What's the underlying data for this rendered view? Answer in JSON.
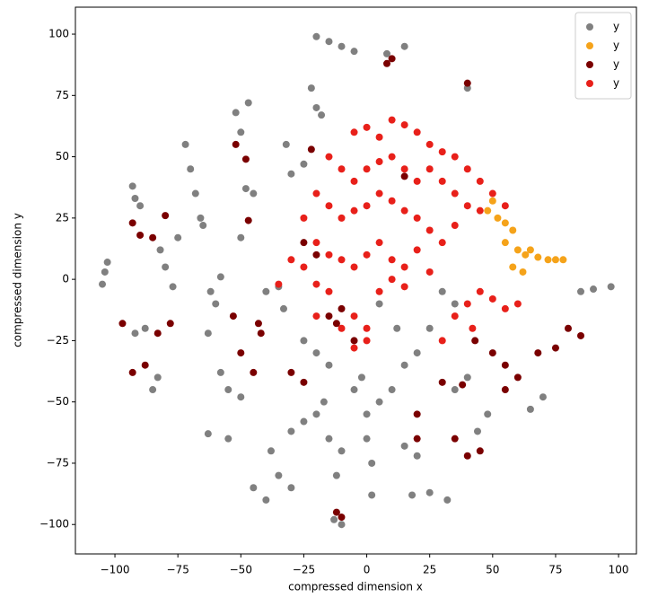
{
  "chart_data": {
    "type": "scatter",
    "xlabel": "compressed dimension x",
    "ylabel": "compressed dimension y",
    "xlim": [
      -115.7,
      107.1
    ],
    "ylim": [
      -112,
      111
    ],
    "xticks": [
      {
        "value": -100,
        "label": "−100"
      },
      {
        "value": -75,
        "label": "−75"
      },
      {
        "value": -50,
        "label": "−50"
      },
      {
        "value": -25,
        "label": "−25"
      },
      0,
      25,
      50,
      75,
      100
    ],
    "yticks": [
      {
        "value": -100,
        "label": "−100"
      },
      {
        "value": -75,
        "label": "−75"
      },
      {
        "value": -50,
        "label": "−50"
      },
      {
        "value": -25,
        "label": "−25"
      },
      0,
      25,
      50,
      75,
      100
    ],
    "grid": false,
    "legend": "upper right",
    "series": [
      {
        "name": "y",
        "color": "#808080",
        "x": [
          -105,
          -104,
          -103,
          -93,
          -92,
          -90,
          -85,
          -83,
          -88,
          -92,
          -80,
          -77,
          -82,
          -75,
          -72,
          -70,
          -68,
          -66,
          -65,
          -63,
          -60,
          -62,
          -58,
          -63,
          -55,
          -55,
          -50,
          -58,
          -52,
          -47,
          -50,
          -48,
          -50,
          -45,
          -40,
          -35,
          -33,
          -30,
          -25,
          -20,
          -17,
          -35,
          -30,
          -38,
          -45,
          -40,
          -30,
          -25,
          -32,
          -22,
          -20,
          -18,
          -20,
          -15,
          -10,
          -5,
          -10,
          -13,
          -10,
          -15,
          -12,
          -5,
          -2,
          0,
          5,
          10,
          15,
          20,
          25,
          12,
          5,
          0,
          2,
          2,
          8,
          15,
          15,
          20,
          18,
          25,
          32,
          35,
          40,
          44,
          48,
          40,
          65,
          70,
          85,
          90,
          97,
          -25,
          -20,
          -15,
          30,
          35
        ],
        "y": [
          -2,
          3,
          7,
          38,
          33,
          30,
          -45,
          -40,
          -20,
          -22,
          5,
          -3,
          12,
          17,
          55,
          45,
          35,
          25,
          22,
          -22,
          -10,
          -5,
          1,
          -63,
          -65,
          -45,
          -48,
          -38,
          68,
          72,
          60,
          37,
          17,
          35,
          -5,
          -3,
          -12,
          -62,
          -58,
          -55,
          -50,
          -80,
          -85,
          -70,
          -85,
          -90,
          43,
          47,
          55,
          78,
          70,
          67,
          99,
          97,
          95,
          93,
          -100,
          -98,
          -70,
          -65,
          -80,
          -45,
          -40,
          -55,
          -50,
          -45,
          -35,
          -30,
          -20,
          -20,
          -10,
          -65,
          -75,
          -88,
          92,
          95,
          -68,
          -72,
          -88,
          -87,
          -90,
          -45,
          -40,
          -62,
          -55,
          78,
          -53,
          -48,
          -5,
          -4,
          -3,
          -25,
          -30,
          -35,
          -5,
          -10
        ]
      },
      {
        "name": "y",
        "color": "#f5a31a",
        "x": [
          48,
          52,
          55,
          58,
          55,
          60,
          58,
          63,
          65,
          68,
          72,
          75,
          78,
          62,
          50
        ],
        "y": [
          28,
          25,
          23,
          20,
          15,
          12,
          5,
          10,
          12,
          9,
          8,
          8,
          8,
          3,
          32
        ]
      },
      {
        "name": "y",
        "color": "#7a0000",
        "x": [
          -97,
          -93,
          -90,
          -85,
          -80,
          -83,
          -78,
          -93,
          -88,
          -50,
          -53,
          -52,
          -48,
          -47,
          -45,
          -43,
          -42,
          -30,
          -25,
          -22,
          -25,
          -20,
          -15,
          -12,
          -10,
          -12,
          -10,
          8,
          10,
          20,
          20,
          15,
          30,
          35,
          40,
          45,
          38,
          50,
          55,
          60,
          68,
          75,
          80,
          85,
          55,
          43,
          40,
          -5
        ],
        "y": [
          -18,
          23,
          18,
          17,
          26,
          -22,
          -18,
          -38,
          -35,
          -30,
          -15,
          55,
          49,
          24,
          -38,
          -18,
          -22,
          -38,
          -42,
          53,
          15,
          10,
          -15,
          -18,
          -12,
          -95,
          -97,
          88,
          90,
          -55,
          -65,
          42,
          -42,
          -65,
          -72,
          -70,
          -43,
          -30,
          -35,
          -40,
          -30,
          -28,
          -20,
          -23,
          -45,
          -25,
          80,
          -25
        ]
      },
      {
        "name": "y",
        "color": "#e8201a",
        "x": [
          -5,
          0,
          5,
          10,
          15,
          20,
          25,
          30,
          35,
          40,
          45,
          50,
          55,
          -15,
          -10,
          -5,
          0,
          5,
          10,
          15,
          20,
          25,
          30,
          35,
          40,
          45,
          -20,
          -15,
          -10,
          -5,
          0,
          5,
          10,
          15,
          20,
          25,
          30,
          35,
          -25,
          -20,
          -15,
          -10,
          -5,
          0,
          5,
          10,
          15,
          20,
          25,
          -30,
          -25,
          -20,
          -15,
          5,
          10,
          15,
          -10,
          -5,
          0,
          -20,
          -35,
          30,
          35,
          40,
          45,
          50,
          55,
          60,
          42,
          -5,
          0
        ],
        "y": [
          60,
          62,
          58,
          65,
          63,
          60,
          55,
          52,
          50,
          45,
          40,
          35,
          30,
          50,
          45,
          40,
          45,
          48,
          50,
          45,
          40,
          45,
          40,
          35,
          30,
          28,
          35,
          30,
          25,
          28,
          30,
          35,
          32,
          28,
          25,
          20,
          15,
          22,
          25,
          15,
          10,
          8,
          5,
          10,
          15,
          8,
          5,
          12,
          3,
          8,
          5,
          -2,
          -5,
          -5,
          0,
          -3,
          -20,
          -15,
          -20,
          -15,
          -2,
          -25,
          -15,
          -10,
          -5,
          -8,
          -12,
          -10,
          -20,
          -28,
          -25
        ]
      }
    ]
  }
}
